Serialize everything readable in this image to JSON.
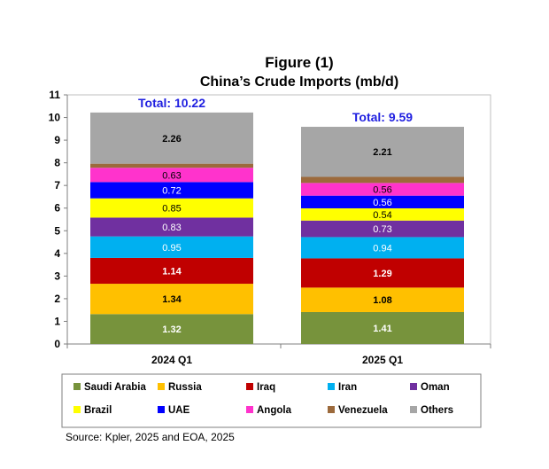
{
  "chart_data": {
    "type": "bar",
    "stacked": true,
    "title": "Figure (1)",
    "subtitle": "China’s Crude Imports (mb/d)",
    "categories": [
      "2024 Q1",
      "2025 Q1"
    ],
    "ylim": [
      0,
      11
    ],
    "yticks": [
      "0",
      "1",
      "2",
      "3",
      "4",
      "5",
      "6",
      "7",
      "8",
      "9",
      "10",
      "11"
    ],
    "grid": false,
    "legend_position": "bottom",
    "totals": [
      {
        "label": "Total: 10.22",
        "value": 10.22
      },
      {
        "label": "Total: 9.59",
        "value": 9.59
      }
    ],
    "series": [
      {
        "name": "Saudi Arabia",
        "color": "#77933c",
        "label_color": "#ffffff",
        "bold": true,
        "values": [
          1.32,
          1.41
        ]
      },
      {
        "name": "Russia",
        "color": "#ffc000",
        "label_color": "#000000",
        "bold": true,
        "values": [
          1.34,
          1.08
        ]
      },
      {
        "name": "Iraq",
        "color": "#c00000",
        "label_color": "#ffffff",
        "bold": true,
        "values": [
          1.14,
          1.29
        ]
      },
      {
        "name": "Iran",
        "color": "#00b0f0",
        "label_color": "#ffffff",
        "bold": false,
        "values": [
          0.95,
          0.94
        ]
      },
      {
        "name": "Oman",
        "color": "#7030a0",
        "label_color": "#ffffff",
        "bold": false,
        "values": [
          0.83,
          0.73
        ]
      },
      {
        "name": "Brazil",
        "color": "#ffff00",
        "label_color": "#000000",
        "bold": false,
        "values": [
          0.85,
          0.54
        ]
      },
      {
        "name": "UAE",
        "color": "#0000ff",
        "label_color": "#ffffff",
        "bold": false,
        "values": [
          0.72,
          0.56
        ]
      },
      {
        "name": "Angola",
        "color": "#ff33cc",
        "label_color": "#000000",
        "bold": false,
        "values": [
          0.63,
          0.56
        ]
      },
      {
        "name": "Venezuela",
        "color": "#9c6a3c",
        "label_color": "#ffffff",
        "bold": false,
        "values": [
          0.18,
          0.27
        ]
      },
      {
        "name": "Others",
        "color": "#a6a6a6",
        "label_color": "#000000",
        "bold": true,
        "values": [
          2.26,
          2.21
        ]
      }
    ],
    "source": "Source: Kpler, 2025 and EOA, 2025"
  }
}
